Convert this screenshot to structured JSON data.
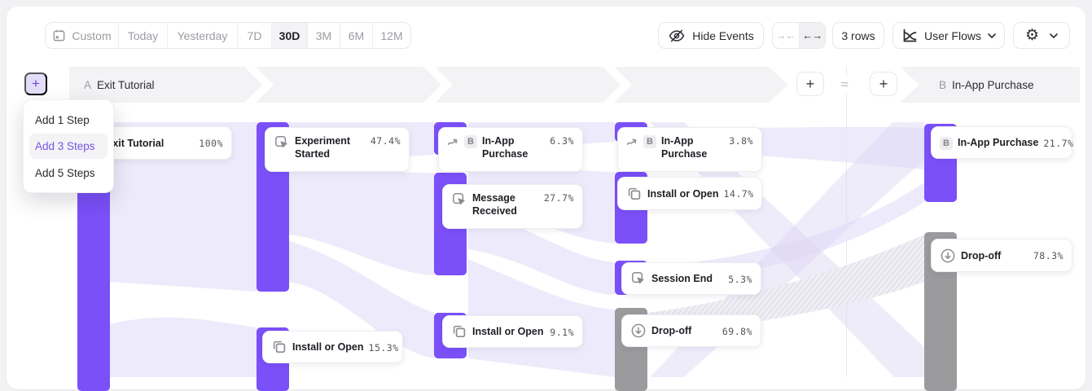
{
  "toolbar": {
    "date_ranges": [
      {
        "label": "Custom",
        "selected": false,
        "has_icon": true
      },
      {
        "label": "Today",
        "selected": false
      },
      {
        "label": "Yesterday",
        "selected": false
      },
      {
        "label": "7D",
        "selected": false
      },
      {
        "label": "30D",
        "selected": true
      },
      {
        "label": "3M",
        "selected": false
      },
      {
        "label": "6M",
        "selected": false
      },
      {
        "label": "12M",
        "selected": false
      }
    ],
    "hide_events_label": "Hide Events",
    "collapse_glyph": "→←",
    "expand_glyph": "←→",
    "expand_selected": true,
    "rows_label": "3 rows",
    "view_selector_label": "User Flows",
    "settings_glyph": "⚙",
    "icons": {
      "calendar": "calendar-icon",
      "hide_events": "eye-off-icon",
      "view_selector": "user-flows-chart-icon",
      "settings": "gear-icon",
      "dropdown": "chevron-down-icon"
    }
  },
  "add_step_button": {
    "glyph": "+"
  },
  "add_menu": {
    "items": [
      {
        "label": "Add 1 Step",
        "highlighted": false
      },
      {
        "label": "Add 3 Steps",
        "highlighted": true
      },
      {
        "label": "Add 5 Steps",
        "highlighted": false
      }
    ]
  },
  "flow": {
    "left_header": {
      "letter": "A",
      "label": "Exit Tutorial"
    },
    "right_header": {
      "letter": "B",
      "label": "In-App Purchase"
    },
    "approx_symbol": "≈",
    "add_column_glyph": "+",
    "nodes": [
      {
        "id": "exit-tutorial",
        "title": "Exit Tutorial",
        "pct": "100%",
        "icon": "none",
        "badge": null,
        "kind": "event"
      },
      {
        "id": "experiment-started",
        "title": "Experiment Started",
        "pct": "47.4%",
        "icon": "event",
        "badge": null,
        "kind": "event"
      },
      {
        "id": "in-app-purchase-1",
        "title": "In-App Purchase",
        "pct": "6.3%",
        "icon": "indirect",
        "badge": "B",
        "kind": "event"
      },
      {
        "id": "message-received",
        "title": "Message Received",
        "pct": "27.7%",
        "icon": "event",
        "badge": null,
        "kind": "event"
      },
      {
        "id": "install-or-open-a",
        "title": "Install or Open",
        "pct": "15.3%",
        "icon": "copy",
        "badge": null,
        "kind": "event"
      },
      {
        "id": "install-or-open-b",
        "title": "Install or Open",
        "pct": "9.1%",
        "icon": "copy",
        "badge": null,
        "kind": "event"
      },
      {
        "id": "in-app-purchase-2",
        "title": "In-App Purchase",
        "pct": "3.8%",
        "icon": "indirect",
        "badge": "B",
        "kind": "event"
      },
      {
        "id": "install-or-open-c",
        "title": "Install or Open",
        "pct": "14.7%",
        "icon": "copy",
        "badge": null,
        "kind": "event"
      },
      {
        "id": "session-end",
        "title": "Session End",
        "pct": "5.3%",
        "icon": "event",
        "badge": null,
        "kind": "event"
      },
      {
        "id": "drop-off-1",
        "title": "Drop-off",
        "pct": "69.8%",
        "icon": "dropoff",
        "badge": null,
        "kind": "dropoff"
      },
      {
        "id": "in-app-purchase-b",
        "title": "In-App Purchase",
        "pct": "21.7%",
        "icon": "none",
        "badge": "B",
        "kind": "event"
      },
      {
        "id": "drop-off-2",
        "title": "Drop-off",
        "pct": "78.3%",
        "icon": "dropoff",
        "badge": null,
        "kind": "dropoff"
      }
    ],
    "colors": {
      "bar_purple": "#7b50f9",
      "bar_gray": "#9b9b9e",
      "ribbon": "#e9e6fa",
      "band_bg": "#f3f3f5",
      "menu_highlight": "#7356e3",
      "add_step_bg": "#e3ddf9"
    }
  }
}
